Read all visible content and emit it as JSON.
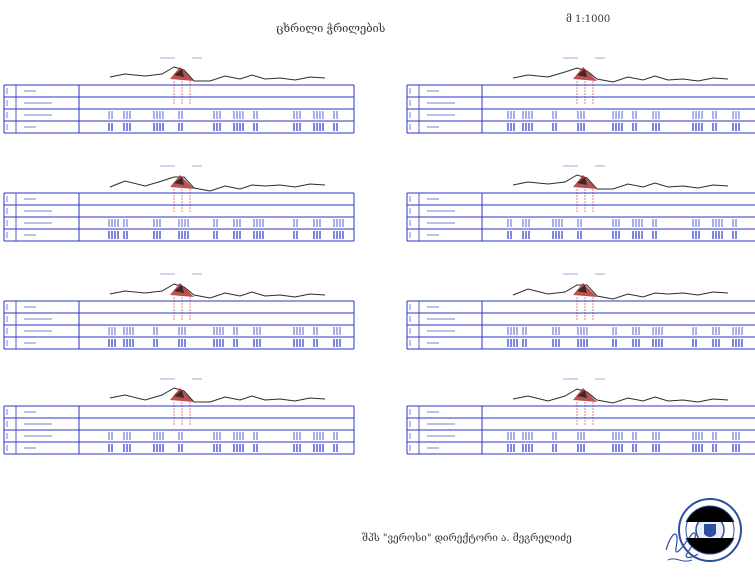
{
  "document": {
    "title": "ცხრილი ჭრილების",
    "scale": "მ 1:1000",
    "footer": "შპს \"ვეროსი\" დირექტორი ა. მეგრელიძე"
  },
  "colors": {
    "grid": "#2a35c8",
    "terrain": "#2b2b2b",
    "profile_fill": "#b03030",
    "accent": "#8a1e1e",
    "seal": "#2d4fa0"
  },
  "icons": {
    "seal": "round-stamp-icon",
    "signature": "handwritten-signature-icon"
  },
  "panels": [
    {
      "id": 1
    },
    {
      "id": 2
    },
    {
      "id": 3
    },
    {
      "id": 4
    },
    {
      "id": 5
    },
    {
      "id": 6
    },
    {
      "id": 7
    },
    {
      "id": 8
    }
  ]
}
